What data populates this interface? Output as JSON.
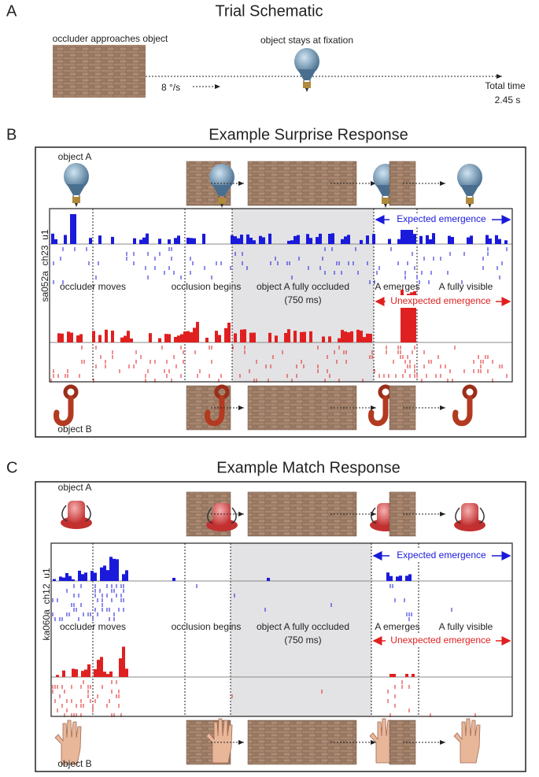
{
  "panel_a": {
    "label": "A",
    "title": "Trial Schematic",
    "occluder_text": "occluder approaches object",
    "object_text": "object stays at fixation",
    "speed": "8 °/s",
    "total_time_label": "Total time",
    "total_time": "2.45 s"
  },
  "panels": [
    {
      "label": "B",
      "title": "Example Surprise Response",
      "object_a": "object A",
      "object_b": "object B",
      "unit": "sa052a_ch23_u1",
      "events": [
        "occluder moves",
        "occlusion begins",
        "object A fully occluded",
        "(750 ms)",
        "A emerges",
        "A fully visible"
      ],
      "expected": "Expected emergence",
      "unexpected": "Unexpected emergence"
    },
    {
      "label": "C",
      "title": "Example Match Response",
      "object_a": "object A",
      "object_b": "object B",
      "unit": "ka060a_ch12_u1",
      "events": [
        "occluder moves",
        "occlusion begins",
        "object A fully occluded",
        "(750 ms)",
        "A emerges",
        "A fully visible"
      ],
      "expected": "Expected emergence",
      "unexpected": "Unexpected emergence"
    }
  ]
}
